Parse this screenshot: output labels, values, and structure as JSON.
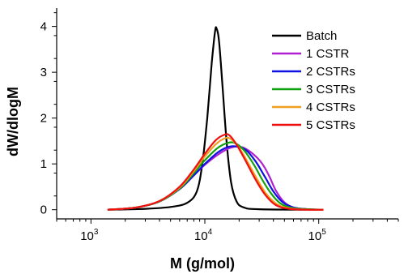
{
  "chart_data": {
    "type": "line",
    "xlabel": "M (g/mol)",
    "ylabel": "dW/dlogM",
    "x_scale": "log",
    "xlim": [
      500,
      500000
    ],
    "ylim": [
      -0.2,
      4.4
    ],
    "x_ticks": [
      {
        "value": 1000,
        "base": "10",
        "exp": "3"
      },
      {
        "value": 10000,
        "base": "10",
        "exp": "4"
      },
      {
        "value": 100000,
        "base": "10",
        "exp": "5"
      }
    ],
    "y_ticks": [
      {
        "value": 0,
        "label": "0"
      },
      {
        "value": 1,
        "label": "1"
      },
      {
        "value": 2,
        "label": "2"
      },
      {
        "value": 3,
        "label": "3"
      },
      {
        "value": 4,
        "label": "4"
      }
    ],
    "legend_position": "top-right",
    "series": [
      {
        "name": "Batch",
        "color": "#000000",
        "points": [
          [
            1400,
            0
          ],
          [
            3000,
            0.02
          ],
          [
            5000,
            0.06
          ],
          [
            7000,
            0.15
          ],
          [
            8500,
            0.4
          ],
          [
            9500,
            1.0
          ],
          [
            10500,
            2.0
          ],
          [
            11500,
            3.2
          ],
          [
            12300,
            3.9
          ],
          [
            12700,
            3.95
          ],
          [
            13300,
            3.7
          ],
          [
            14200,
            2.8
          ],
          [
            15500,
            1.5
          ],
          [
            17000,
            0.6
          ],
          [
            19000,
            0.18
          ],
          [
            22000,
            0.05
          ],
          [
            30000,
            0.01
          ],
          [
            110000,
            0
          ]
        ]
      },
      {
        "name": "1 CSTR",
        "color": "#b020d0",
        "points": [
          [
            1400,
            0
          ],
          [
            2500,
            0.05
          ],
          [
            4000,
            0.18
          ],
          [
            6000,
            0.45
          ],
          [
            8000,
            0.75
          ],
          [
            10000,
            0.98
          ],
          [
            13000,
            1.2
          ],
          [
            16000,
            1.33
          ],
          [
            19000,
            1.38
          ],
          [
            22000,
            1.35
          ],
          [
            27000,
            1.2
          ],
          [
            32000,
            1.0
          ],
          [
            37000,
            0.72
          ],
          [
            42000,
            0.42
          ],
          [
            50000,
            0.16
          ],
          [
            60000,
            0.05
          ],
          [
            80000,
            0.01
          ],
          [
            110000,
            0
          ]
        ]
      },
      {
        "name": "2 CSTRs",
        "color": "#1010e0",
        "points": [
          [
            1400,
            0
          ],
          [
            2500,
            0.05
          ],
          [
            4000,
            0.18
          ],
          [
            6000,
            0.45
          ],
          [
            8000,
            0.75
          ],
          [
            10000,
            1.0
          ],
          [
            13000,
            1.25
          ],
          [
            16000,
            1.37
          ],
          [
            19000,
            1.38
          ],
          [
            23000,
            1.3
          ],
          [
            28000,
            1.05
          ],
          [
            34000,
            0.7
          ],
          [
            40000,
            0.4
          ],
          [
            48000,
            0.17
          ],
          [
            60000,
            0.05
          ],
          [
            80000,
            0.01
          ],
          [
            110000,
            0
          ]
        ]
      },
      {
        "name": "3 CSTRs",
        "color": "#10a010",
        "points": [
          [
            1400,
            0
          ],
          [
            2500,
            0.05
          ],
          [
            4000,
            0.18
          ],
          [
            6000,
            0.46
          ],
          [
            8000,
            0.8
          ],
          [
            10000,
            1.08
          ],
          [
            13000,
            1.35
          ],
          [
            16000,
            1.46
          ],
          [
            18500,
            1.45
          ],
          [
            22000,
            1.3
          ],
          [
            27000,
            0.98
          ],
          [
            32000,
            0.65
          ],
          [
            38000,
            0.36
          ],
          [
            46000,
            0.14
          ],
          [
            58000,
            0.04
          ],
          [
            80000,
            0.01
          ],
          [
            110000,
            0
          ]
        ]
      },
      {
        "name": "4 CSTRs",
        "color": "#f0a020",
        "points": [
          [
            1400,
            0
          ],
          [
            2500,
            0.05
          ],
          [
            4000,
            0.19
          ],
          [
            6000,
            0.48
          ],
          [
            8000,
            0.84
          ],
          [
            10000,
            1.16
          ],
          [
            12500,
            1.43
          ],
          [
            15000,
            1.56
          ],
          [
            17000,
            1.54
          ],
          [
            20000,
            1.35
          ],
          [
            24000,
            1.02
          ],
          [
            29000,
            0.65
          ],
          [
            35000,
            0.33
          ],
          [
            43000,
            0.12
          ],
          [
            55000,
            0.03
          ],
          [
            80000,
            0
          ],
          [
            110000,
            0
          ]
        ]
      },
      {
        "name": "5 CSTRs",
        "color": "#ee1010",
        "points": [
          [
            1400,
            0
          ],
          [
            2500,
            0.05
          ],
          [
            4000,
            0.19
          ],
          [
            6000,
            0.5
          ],
          [
            8000,
            0.88
          ],
          [
            10000,
            1.22
          ],
          [
            12500,
            1.52
          ],
          [
            15000,
            1.64
          ],
          [
            16500,
            1.62
          ],
          [
            19000,
            1.42
          ],
          [
            23000,
            1.05
          ],
          [
            28000,
            0.65
          ],
          [
            34000,
            0.32
          ],
          [
            42000,
            0.1
          ],
          [
            55000,
            0.02
          ],
          [
            80000,
            0
          ],
          [
            110000,
            0
          ]
        ]
      }
    ]
  }
}
